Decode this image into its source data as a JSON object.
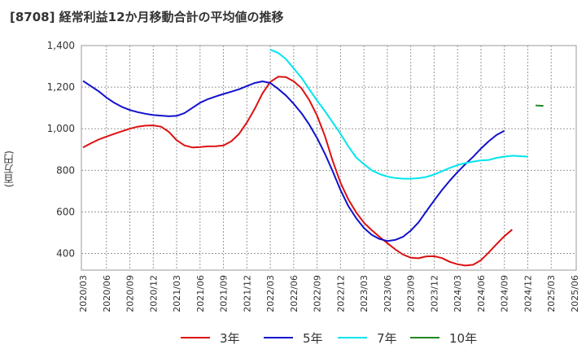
{
  "title": "[8708]  経常利益12か月移動合計の平均値の推移",
  "y_unit_label": "(百万円)",
  "chart_data": {
    "type": "line",
    "title": "[8708]  経常利益12か月移動合計の平均値の推移",
    "ylabel": "(百万円)",
    "xlabel": "",
    "ylim": [
      320,
      1400
    ],
    "y_ticks": [
      400,
      600,
      800,
      1000,
      1200,
      1400
    ],
    "y_tick_labels": [
      "400",
      "600",
      "800",
      "1,000",
      "1,200",
      "1,400"
    ],
    "x_ticks": [
      "2020/03",
      "2020/06",
      "2020/09",
      "2020/12",
      "2021/03",
      "2021/06",
      "2021/09",
      "2021/12",
      "2022/03",
      "2022/06",
      "2022/09",
      "2022/12",
      "2023/03",
      "2023/06",
      "2023/09",
      "2023/12",
      "2024/03",
      "2024/06",
      "2024/09",
      "2024/12",
      "2025/03",
      "2025/06"
    ],
    "grid": true,
    "legend_position": "bottom",
    "series": [
      {
        "name": "3年",
        "color": "#dd1111",
        "start": "2020/03",
        "values": [
          910,
          930,
          948,
          962,
          975,
          988,
          1000,
          1010,
          1015,
          1016,
          1010,
          985,
          945,
          920,
          910,
          912,
          915,
          916,
          920,
          940,
          975,
          1030,
          1095,
          1170,
          1225,
          1250,
          1248,
          1228,
          1195,
          1138,
          1063,
          965,
          845,
          740,
          660,
          598,
          548,
          512,
          480,
          450,
          420,
          395,
          380,
          377,
          386,
          387,
          378,
          360,
          348,
          342,
          346,
          368,
          405,
          445,
          483,
          515
        ]
      },
      {
        "name": "5年",
        "color": "#1111cc",
        "start": "2020/03",
        "values": [
          1230,
          1205,
          1180,
          1150,
          1125,
          1105,
          1090,
          1080,
          1072,
          1066,
          1063,
          1060,
          1062,
          1075,
          1100,
          1125,
          1142,
          1155,
          1167,
          1178,
          1190,
          1205,
          1220,
          1228,
          1220,
          1192,
          1160,
          1120,
          1075,
          1020,
          955,
          880,
          795,
          705,
          628,
          570,
          523,
          490,
          470,
          460,
          465,
          480,
          510,
          550,
          603,
          655,
          705,
          750,
          792,
          830,
          865,
          905,
          940,
          970,
          990
        ]
      },
      {
        "name": "7年",
        "color": "#00e5ee",
        "start": "2022/03",
        "values": [
          1380,
          1365,
          1335,
          1290,
          1245,
          1190,
          1135,
          1085,
          1030,
          975,
          915,
          862,
          830,
          800,
          782,
          770,
          763,
          760,
          760,
          762,
          768,
          780,
          795,
          812,
          825,
          835,
          842,
          848,
          850,
          860,
          866,
          870,
          868,
          866
        ]
      },
      {
        "name": "10年",
        "color": "#228822",
        "start": "2025/01",
        "values": [
          1112,
          1110
        ]
      }
    ]
  }
}
